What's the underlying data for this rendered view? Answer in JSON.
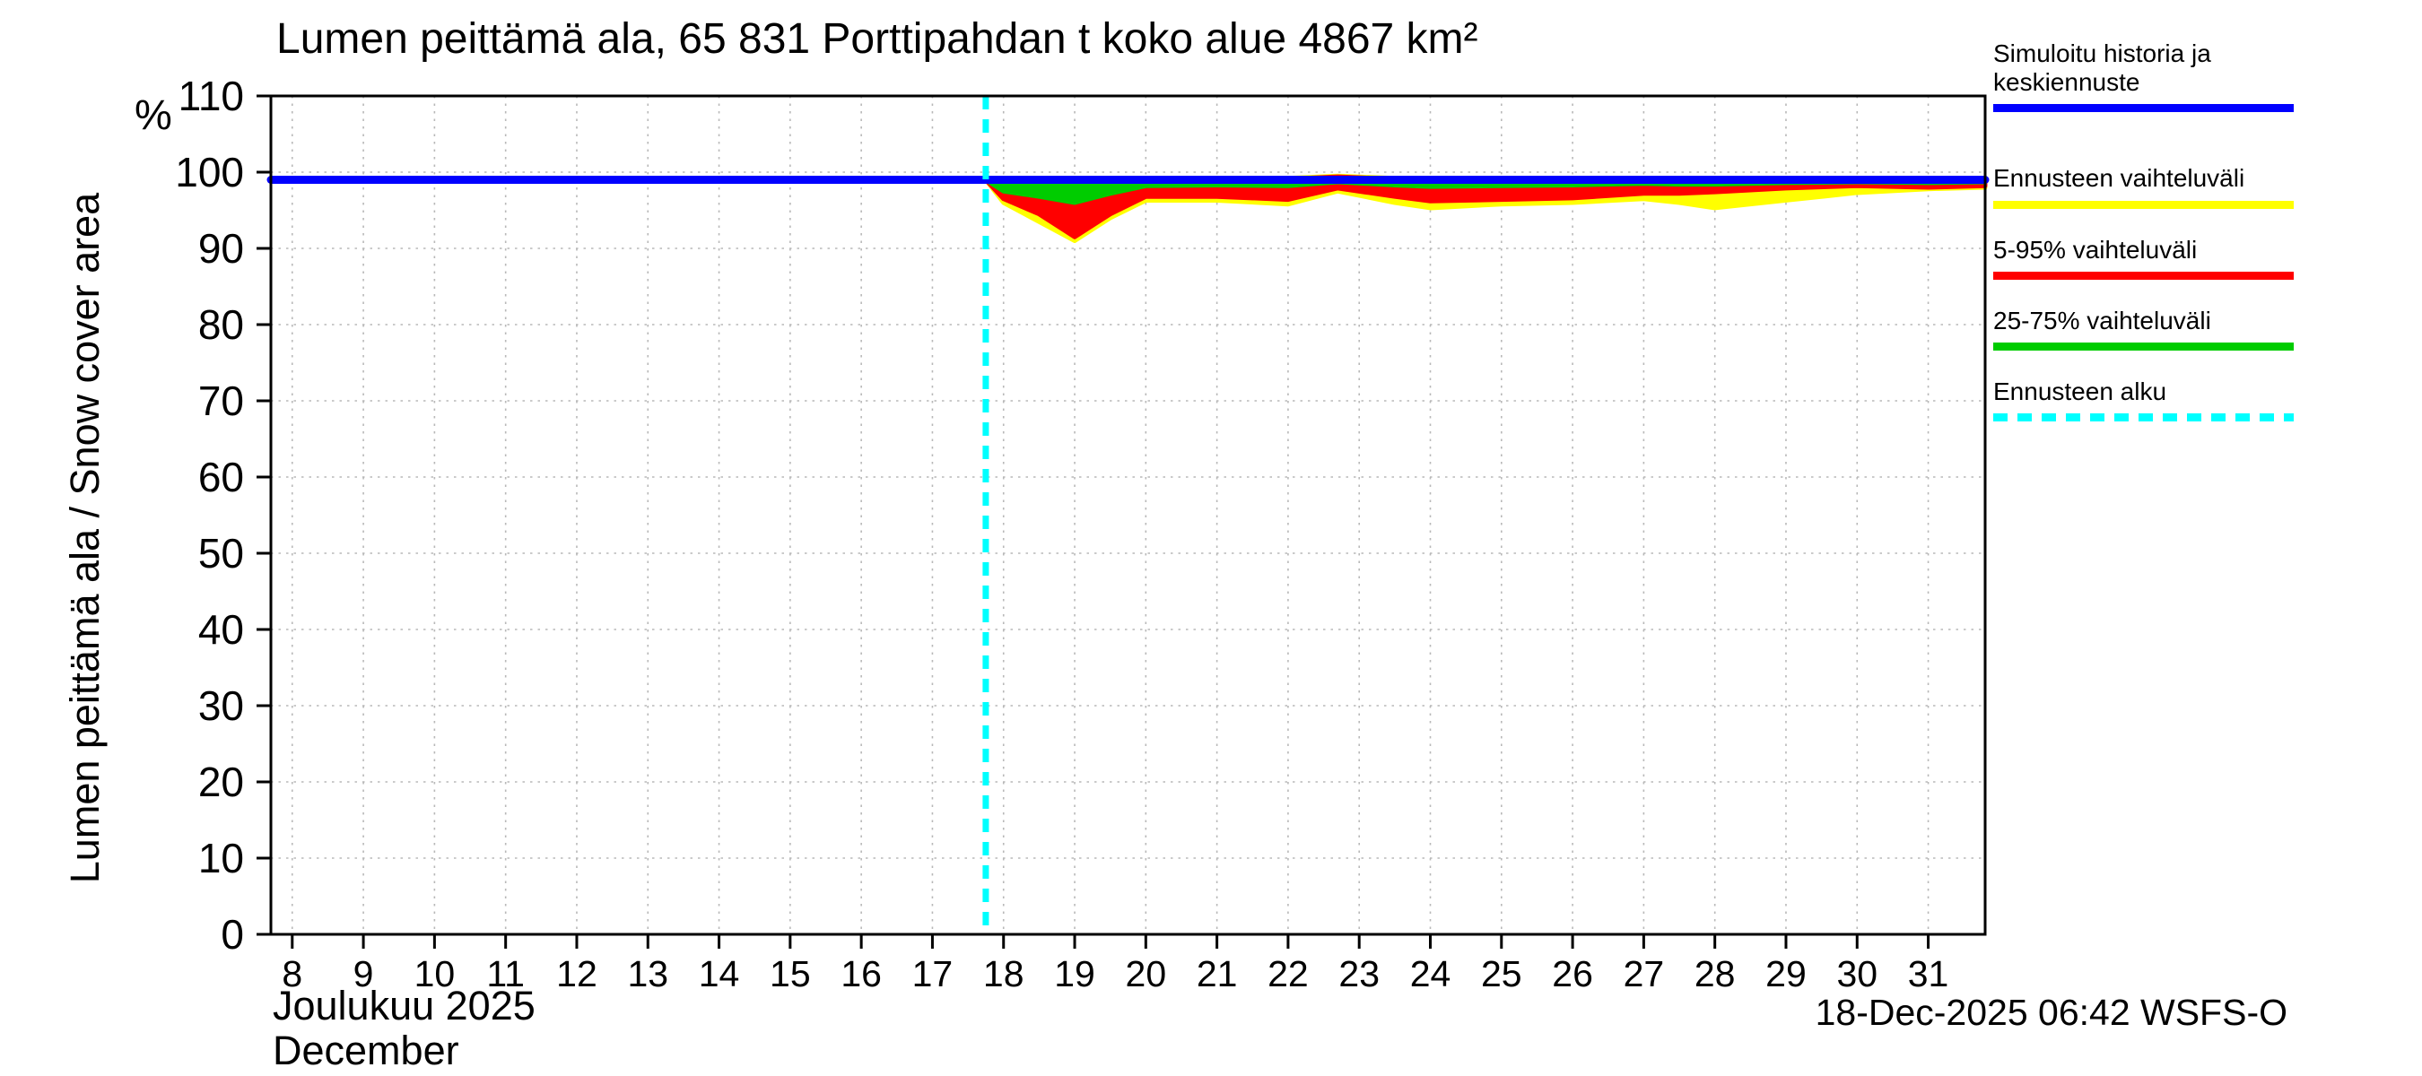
{
  "chart": {
    "title": "Lumen peittämä ala, 65 831 Porttipahdan t koko alue 4867 km²",
    "y_unit": "%",
    "y_label": "Lumen peittämä ala / Snow cover area",
    "x_label_fi": "Joulukuu 2025",
    "x_label_en": "December",
    "timestamp": "18-Dec-2025 06:42 WSFS-O"
  },
  "legend": {
    "items": [
      {
        "label": "Simuloitu historia ja keskiennuste",
        "color": "#0000ff",
        "dashed": false
      },
      {
        "label": "Ennusteen vaihteluväli",
        "color": "#ffff00",
        "dashed": false
      },
      {
        "label": "5-95% vaihteluväli",
        "color": "#ff0000",
        "dashed": false
      },
      {
        "label": "25-75% vaihteluväli",
        "color": "#00cc00",
        "dashed": false
      },
      {
        "label": "Ennusteen alku",
        "color": "#00ffff",
        "dashed": true
      }
    ]
  },
  "chart_data": {
    "type": "line",
    "title": "Lumen peittämä ala, 65 831 Porttipahdan t koko alue 4867 km²",
    "xlabel": "Joulukuu 2025 / December",
    "ylabel": "Lumen peittämä ala / Snow cover area (%)",
    "x_range": [
      7.7,
      31.8
    ],
    "y_range": [
      0,
      110
    ],
    "x_ticks": [
      8,
      9,
      10,
      11,
      12,
      13,
      14,
      15,
      16,
      17,
      18,
      19,
      20,
      21,
      22,
      23,
      24,
      25,
      26,
      27,
      28,
      29,
      30,
      31
    ],
    "y_ticks": [
      0,
      10,
      20,
      30,
      40,
      50,
      60,
      70,
      80,
      90,
      100,
      110
    ],
    "grid": true,
    "legend_position": "top-right",
    "forecast_start_x": 17.75,
    "colors": {
      "grid": "#b8b8b8",
      "forecast_start": "#00ffff",
      "frame": "#000000"
    },
    "median": {
      "name": "Simuloitu historia ja keskiennuste",
      "color": "#0000ff",
      "x": [
        7.7,
        31.8
      ],
      "y": [
        99,
        99
      ]
    },
    "bands": [
      {
        "id": "ennusteen-vaihteluvali",
        "name": "Ennusteen vaihteluväli",
        "color": "#ffff00",
        "x": [
          17.75,
          18,
          18.5,
          19,
          19.5,
          20,
          21,
          22,
          22.7,
          23.5,
          24,
          25,
          26,
          27,
          27.5,
          28,
          29,
          30,
          31,
          31.8
        ],
        "upper": [
          99,
          99.2,
          99.2,
          99.2,
          99.2,
          99.2,
          99.2,
          99.2,
          99.5,
          99.2,
          99.2,
          99.2,
          99.2,
          99.2,
          99.2,
          99.2,
          99.2,
          99.2,
          99.2,
          99.2
        ],
        "lower": [
          99,
          96,
          93.5,
          91,
          94,
          96.3,
          96.3,
          95.8,
          97.5,
          96,
          95.3,
          95.8,
          96,
          96.5,
          96,
          95.3,
          96.3,
          97.3,
          97.8,
          98
        ]
      },
      {
        "id": "5-95-vaihteluvali",
        "name": "5-95% vaihteluväli",
        "color": "#ff0000",
        "x": [
          17.75,
          18,
          18.5,
          19,
          19.5,
          20,
          21,
          22,
          22.7,
          23.5,
          24,
          25,
          26,
          27,
          27.5,
          28,
          29,
          30,
          31,
          31.8
        ],
        "upper": [
          99,
          99.1,
          99.1,
          99.1,
          99.1,
          99.1,
          99.1,
          99.1,
          99.4,
          99.1,
          99.1,
          99.1,
          99.1,
          99.1,
          99.1,
          99.1,
          99.1,
          99.1,
          99.1,
          99.1
        ],
        "lower": [
          99,
          96.5,
          94.5,
          91.5,
          94.5,
          96.8,
          96.8,
          96.4,
          97.9,
          96.8,
          96.2,
          96.4,
          96.6,
          97.2,
          97.2,
          97.4,
          97.9,
          98.2,
          98,
          98.2
        ]
      },
      {
        "id": "25-75-vaihteluvali",
        "name": "25-75% vaihteluväli",
        "color": "#00cc00",
        "x": [
          17.75,
          18,
          18.5,
          19,
          19.5,
          20,
          21,
          22,
          22.7,
          23.5,
          24,
          25,
          26,
          27,
          27.5,
          28,
          29,
          30,
          31,
          31.8
        ],
        "upper": [
          99,
          99,
          99,
          99,
          99,
          99,
          99,
          99,
          99.2,
          99,
          99,
          99,
          99,
          99,
          99,
          99,
          99,
          99,
          99,
          99
        ],
        "lower": [
          99,
          97.5,
          96.8,
          96,
          97.2,
          98.2,
          98.3,
          98.2,
          98.7,
          98.3,
          98.1,
          98.2,
          98.3,
          98.5,
          98.4,
          98.4,
          98.6,
          98.7,
          98.6,
          98.7
        ]
      }
    ]
  }
}
